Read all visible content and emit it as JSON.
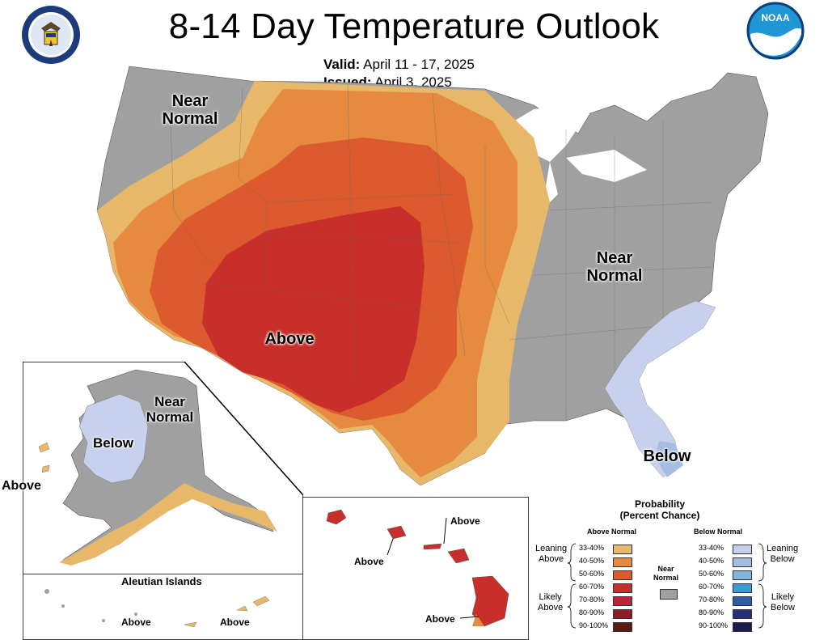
{
  "title": "8-14 Day Temperature Outlook",
  "valid": {
    "label": "Valid:",
    "value": "April 11 - 17, 2025"
  },
  "issued": {
    "label": "Issued:",
    "value": "April 3, 2025"
  },
  "logos": {
    "left": "department-of-commerce-seal",
    "right_text": "NOAA"
  },
  "map_labels": {
    "conus_west": [
      "Near",
      "Normal"
    ],
    "conus_east": [
      "Near",
      "Normal"
    ],
    "conus_center": "Above",
    "florida": "Below",
    "alaska_near": [
      "Near",
      "Normal"
    ],
    "alaska_below": "Below",
    "alaska_above": "Above",
    "aleutian_title": "Aleutian Islands",
    "aleutian_above_1": "Above",
    "aleutian_above_2": "Above",
    "hawaii_above_1": "Above",
    "hawaii_above_2": "Above",
    "hawaii_above_3": "Above"
  },
  "legend": {
    "title_1": "Probability",
    "title_2": "(Percent Chance)",
    "above_header": "Above Normal",
    "below_header": "Below Normal",
    "near_label_1": "Near",
    "near_label_2": "Normal",
    "above_groups": {
      "leaning": [
        "Leaning",
        "Above"
      ],
      "likely": [
        "Likely",
        "Above"
      ]
    },
    "below_groups": {
      "leaning": [
        "Leaning",
        "Below"
      ],
      "likely": [
        "Likely",
        "Below"
      ]
    },
    "above_bins": [
      {
        "range": "33-40%",
        "color": "#e8b86a"
      },
      {
        "range": "40-50%",
        "color": "#e58a3f"
      },
      {
        "range": "50-60%",
        "color": "#dc5a2d"
      },
      {
        "range": "60-70%",
        "color": "#c92f2a"
      },
      {
        "range": "70-80%",
        "color": "#c21f3d"
      },
      {
        "range": "80-90%",
        "color": "#8e1d2a"
      },
      {
        "range": "90-100%",
        "color": "#5a1a12"
      }
    ],
    "below_bins": [
      {
        "range": "33-40%",
        "color": "#c7d0ec"
      },
      {
        "range": "40-50%",
        "color": "#a5bde0"
      },
      {
        "range": "50-60%",
        "color": "#7fb5df"
      },
      {
        "range": "60-70%",
        "color": "#3d9bd4"
      },
      {
        "range": "70-80%",
        "color": "#2a5ca8"
      },
      {
        "range": "80-90%",
        "color": "#263078"
      },
      {
        "range": "90-100%",
        "color": "#1a1b4e"
      }
    ],
    "near_color": "#a0a0a0"
  }
}
